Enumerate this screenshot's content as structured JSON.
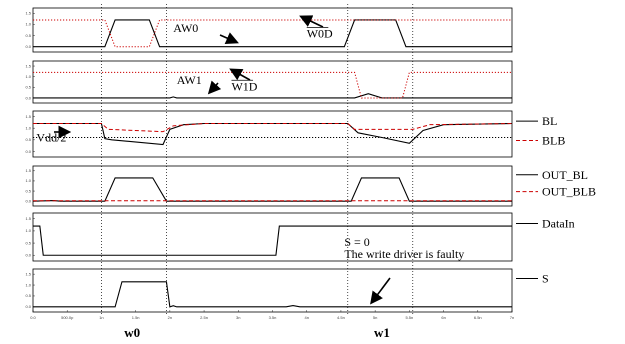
{
  "chart_data": {
    "type": "line",
    "x_unit": "s",
    "xlim": [
      0,
      7e-09
    ],
    "x_ticks": [
      "0.0",
      "500.0p",
      "1n",
      "1.5n",
      "2n",
      "2.5n",
      "3n",
      "3.5n",
      "4n",
      "4.5n",
      "5n",
      "5.5n",
      "6n",
      "6.5n",
      "7n"
    ],
    "x_tick_values": [
      0,
      5e-10,
      1e-09,
      1.5e-09,
      2e-09,
      2.5e-09,
      3e-09,
      3.5e-09,
      4e-09,
      4.5e-09,
      5e-09,
      5.5e-09,
      6e-09,
      6.5e-09,
      7e-09
    ],
    "y_ticks": [
      "0.0",
      "0.5",
      "1.0",
      "1.5"
    ],
    "ylim": [
      0,
      1.5
    ],
    "grid": false,
    "phase_markers": [
      {
        "x": 1e-09
      },
      {
        "x": 1.95e-09
      },
      {
        "x": 4.6e-09
      },
      {
        "x": 5.55e-09
      }
    ],
    "phase_labels": [
      {
        "label": "w0",
        "x": 1.45e-09
      },
      {
        "label": "w1",
        "x": 5.1e-09
      }
    ],
    "panels": [
      {
        "id": "p1",
        "series": [
          {
            "color": "#000000",
            "style": "solid",
            "points": [
              [
                0,
                0
              ],
              [
                1.05e-09,
                0
              ],
              [
                1.2e-09,
                1.2
              ],
              [
                1.7e-09,
                1.2
              ],
              [
                1.85e-09,
                0
              ],
              [
                4.55e-09,
                0
              ],
              [
                4.7e-09,
                1.2
              ],
              [
                5.3e-09,
                1.2
              ],
              [
                5.45e-09,
                0
              ],
              [
                7e-09,
                0
              ]
            ]
          },
          {
            "color": "#cc0000",
            "style": "dotted",
            "points": [
              [
                0,
                1.2
              ],
              [
                1.05e-09,
                1.2
              ],
              [
                1.2e-09,
                0
              ],
              [
                1.7e-09,
                0
              ],
              [
                1.85e-09,
                1.2
              ],
              [
                7e-09,
                1.2
              ]
            ]
          }
        ],
        "annotations": [
          {
            "text": "AW0",
            "x": 2.05e-09,
            "y": 0.85
          },
          {
            "text": "W0D",
            "x": 4e-09,
            "y": 0.6,
            "overline": true
          }
        ]
      },
      {
        "id": "p2",
        "series": [
          {
            "color": "#000000",
            "style": "solid",
            "points": [
              [
                0,
                0
              ],
              [
                2e-09,
                0
              ],
              [
                2.05e-09,
                0.05
              ],
              [
                2.1e-09,
                0
              ],
              [
                4.7e-09,
                0
              ],
              [
                4.9e-09,
                0.2
              ],
              [
                5.1e-09,
                0
              ],
              [
                7e-09,
                0
              ]
            ]
          },
          {
            "color": "#cc0000",
            "style": "dotted",
            "points": [
              [
                0,
                1.2
              ],
              [
                4.7e-09,
                1.2
              ],
              [
                4.8e-09,
                0
              ],
              [
                5.4e-09,
                0
              ],
              [
                5.5e-09,
                1.2
              ],
              [
                7e-09,
                1.2
              ]
            ]
          }
        ],
        "annotations": [
          {
            "text": "AW1",
            "x": 2.1e-09,
            "y": 0.85
          },
          {
            "text": "W1D",
            "x": 2.9e-09,
            "y": 0.55,
            "overline": true
          }
        ]
      },
      {
        "id": "p3",
        "series": [
          {
            "color": "#000000",
            "style": "solid",
            "legend": "BL",
            "points": [
              [
                0,
                1.2
              ],
              [
                1e-09,
                1.2
              ],
              [
                1.05e-09,
                0.55
              ],
              [
                1.15e-09,
                0.5
              ],
              [
                1.9e-09,
                0.3
              ],
              [
                2e-09,
                0.95
              ],
              [
                2.2e-09,
                1.15
              ],
              [
                2.5e-09,
                1.2
              ],
              [
                4.6e-09,
                1.2
              ],
              [
                4.75e-09,
                0.8
              ],
              [
                5.1e-09,
                0.6
              ],
              [
                5.5e-09,
                0.35
              ],
              [
                5.7e-09,
                0.9
              ],
              [
                6e-09,
                1.15
              ],
              [
                7e-09,
                1.2
              ]
            ]
          },
          {
            "color": "#cc0000",
            "style": "dashed",
            "legend": "BLB",
            "points": [
              [
                0,
                1.2
              ],
              [
                1e-09,
                1.2
              ],
              [
                1.1e-09,
                0.95
              ],
              [
                1.9e-09,
                0.85
              ],
              [
                2.05e-09,
                1.1
              ],
              [
                2.5e-09,
                1.2
              ],
              [
                4.6e-09,
                1.2
              ],
              [
                4.7e-09,
                0.95
              ],
              [
                5.55e-09,
                0.95
              ],
              [
                5.8e-09,
                1.15
              ],
              [
                7e-09,
                1.2
              ]
            ]
          },
          {
            "color": "#000000",
            "style": "dotted",
            "points": [
              [
                0,
                0.6
              ],
              [
                7e-09,
                0.6
              ]
            ]
          }
        ],
        "annotations": [
          {
            "text": "Vdd/2",
            "x": 5e-11,
            "y": 0.6
          }
        ]
      },
      {
        "id": "p4",
        "series": [
          {
            "color": "#000000",
            "style": "solid",
            "legend": "OUT_BL",
            "points": [
              [
                0,
                0
              ],
              [
                3e-10,
                0.03
              ],
              [
                4e-10,
                0
              ],
              [
                1.05e-09,
                0
              ],
              [
                1.2e-09,
                1.15
              ],
              [
                1.75e-09,
                1.15
              ],
              [
                1.95e-09,
                0
              ],
              [
                4.65e-09,
                0
              ],
              [
                4.8e-09,
                1.15
              ],
              [
                5.35e-09,
                1.15
              ],
              [
                5.5e-09,
                0
              ],
              [
                7e-09,
                0
              ]
            ]
          },
          {
            "color": "#cc0000",
            "style": "dashed",
            "legend": "OUT_BLB",
            "points": [
              [
                0,
                0.02
              ],
              [
                7e-09,
                0.02
              ]
            ]
          }
        ]
      },
      {
        "id": "p5",
        "series": [
          {
            "color": "#000000",
            "style": "solid",
            "legend": "DataIn",
            "points": [
              [
                0,
                1.2
              ],
              [
                1e-10,
                1.2
              ],
              [
                1.5e-10,
                0
              ],
              [
                3.55e-09,
                0
              ],
              [
                3.6e-09,
                1.2
              ],
              [
                7e-09,
                1.2
              ]
            ]
          }
        ],
        "annotations": [
          {
            "text": "S = 0",
            "x": 4.55e-09,
            "y": 0.55
          },
          {
            "text": "The write driver is faulty",
            "x": 4.55e-09,
            "y": 0.05
          }
        ]
      },
      {
        "id": "p6",
        "series": [
          {
            "color": "#000000",
            "style": "solid",
            "legend": "S",
            "points": [
              [
                0,
                0
              ],
              [
                1.2e-09,
                0
              ],
              [
                1.3e-09,
                1.15
              ],
              [
                1.95e-09,
                1.15
              ],
              [
                2e-09,
                0
              ],
              [
                2.05e-09,
                0.05
              ],
              [
                2.1e-09,
                0
              ],
              [
                3.7e-09,
                0
              ],
              [
                3.8e-09,
                0.06
              ],
              [
                3.9e-09,
                0
              ],
              [
                7e-09,
                0
              ]
            ]
          }
        ]
      }
    ]
  }
}
